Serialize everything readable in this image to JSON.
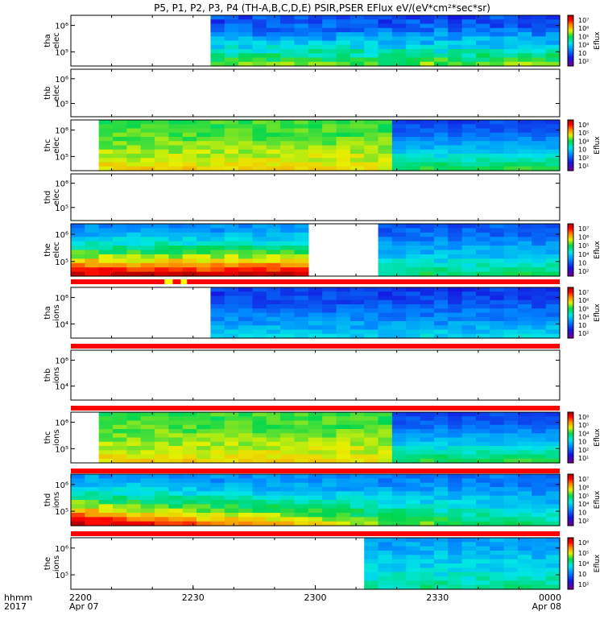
{
  "title": "P5, P1, P2, P3, P4 (TH-A,B,C,D,E) PSIR,PSER EFlux eV/(eV*cm²*sec*sr)",
  "xaxis": {
    "var_label_1": "hhmm",
    "var_label_2": "2017",
    "ticks": [
      {
        "label": "2200",
        "sublabel": "Apr 07"
      },
      {
        "label": "2230",
        "sublabel": ""
      },
      {
        "label": "2300",
        "sublabel": ""
      },
      {
        "label": "2330",
        "sublabel": ""
      },
      {
        "label": "0000",
        "sublabel": "Apr 08"
      }
    ]
  },
  "colors": {
    "quality_flag_red": "#ff0000",
    "quality_flag_yellow": "#ffff00",
    "colormap": "rainbow (purple-blue-cyan-green-yellow-red)"
  },
  "chart_data": {
    "type": "heatmap",
    "x": [
      "2200",
      "2230",
      "2300",
      "2330",
      "0000"
    ],
    "x_range_minutes": [
      0,
      120
    ],
    "y_scale": "log",
    "panels": [
      {
        "label_1": "tha",
        "label_2": "elec",
        "ytick_labels": [
          "10⁵",
          "10⁶"
        ],
        "colorbar": {
          "label": "Eflux",
          "ticks": [
            "10⁷",
            "10⁶",
            "10⁵",
            "10⁴",
            "10⁳",
            "10²"
          ]
        },
        "data_start_min": 35.5,
        "data_end_min": 120,
        "gap": null,
        "top_level": 0.22,
        "bottom_level": 0.62,
        "noise": 0.07,
        "flag": null
      },
      {
        "label_1": "thb",
        "label_2": "elec",
        "ytick_labels": [
          "10⁵",
          "10⁶"
        ],
        "colorbar": null,
        "data_start_min": null,
        "data_end_min": null,
        "gap": null,
        "flag": null
      },
      {
        "label_1": "thc",
        "label_2": "elec",
        "ytick_labels": [
          "10⁵",
          "10⁶"
        ],
        "colorbar": {
          "label": "Eflux",
          "ticks": [
            "10⁶",
            "10⁵",
            "10⁴",
            "10⁳",
            "10²",
            "10¹"
          ]
        },
        "data_start_min": 6.5,
        "data_end_min": 120,
        "gap": null,
        "split_min": 79,
        "before_split": {
          "top_level": 0.6,
          "bottom_level": 0.72
        },
        "after_split": {
          "top_level": 0.22,
          "bottom_level": 0.58
        },
        "noise": 0.04,
        "flag": null
      },
      {
        "label_1": "thd",
        "label_2": "elec",
        "ytick_labels": [
          "10⁵",
          "10⁶"
        ],
        "colorbar": null,
        "data_start_min": null,
        "data_end_min": null,
        "gap": null,
        "flag": null
      },
      {
        "label_1": "the",
        "label_2": "elec",
        "ytick_labels": [
          "10⁵",
          "10⁶"
        ],
        "colorbar": {
          "label": "Eflux",
          "ticks": [
            "10⁷",
            "10⁶",
            "10⁵",
            "10⁴",
            "10⁳",
            "10²"
          ]
        },
        "data_start_min": 0,
        "data_end_min": 120,
        "gap": [
          58,
          76
        ],
        "split_min": 58,
        "before_split": {
          "top_level": 0.32,
          "bottom_level": 0.96
        },
        "after_split": {
          "top_level": 0.25,
          "bottom_level": 0.55
        },
        "noise": 0.05,
        "flag": {
          "segments": [
            {
              "from": 0,
              "to": 23,
              "color": "red"
            },
            {
              "from": 23,
              "to": 25,
              "color": "yellow"
            },
            {
              "from": 25,
              "to": 27,
              "color": "red"
            },
            {
              "from": 27,
              "to": 28.5,
              "color": "yellow"
            },
            {
              "from": 28.5,
              "to": 120,
              "color": "red"
            }
          ]
        }
      },
      {
        "label_1": "tha",
        "label_2": "ions",
        "ytick_labels": [
          "10⁴",
          "10⁶"
        ],
        "colorbar": {
          "label": "Eflux",
          "ticks": [
            "10⁷",
            "10⁶",
            "10⁵",
            "10⁴",
            "10⁳",
            "10²"
          ]
        },
        "data_start_min": 35.5,
        "data_end_min": 120,
        "gap": null,
        "top_level": 0.2,
        "bottom_level": 0.42,
        "noise": 0.05,
        "flag": {
          "segments": [
            {
              "from": 0,
              "to": 120,
              "color": "red"
            }
          ]
        }
      },
      {
        "label_1": "thb",
        "label_2": "ions",
        "ytick_labels": [
          "10⁴",
          "10⁶"
        ],
        "colorbar": null,
        "data_start_min": null,
        "data_end_min": null,
        "gap": null,
        "flag": {
          "segments": [
            {
              "from": 0,
              "to": 120,
              "color": "red"
            }
          ]
        }
      },
      {
        "label_1": "thc",
        "label_2": "ions",
        "ytick_labels": [
          "10⁵",
          "10⁶"
        ],
        "colorbar": {
          "label": "Eflux",
          "ticks": [
            "10⁶",
            "10⁵",
            "10⁴",
            "10⁳",
            "10²",
            "10¹"
          ]
        },
        "data_start_min": 6.5,
        "data_end_min": 120,
        "gap": null,
        "split_min": 79,
        "before_split": {
          "top_level": 0.6,
          "bottom_level": 0.72
        },
        "after_split": {
          "top_level": 0.22,
          "bottom_level": 0.58
        },
        "noise": 0.04,
        "flag": {
          "segments": [
            {
              "from": 0,
              "to": 120,
              "color": "red"
            }
          ]
        }
      },
      {
        "label_1": "thd",
        "label_2": "ions",
        "ytick_labels": [
          "10⁵",
          "10⁶"
        ],
        "colorbar": {
          "label": "Eflux",
          "ticks": [
            "10⁷",
            "10⁶",
            "10⁵",
            "10⁴",
            "10⁳",
            "10²"
          ]
        },
        "data_start_min": 0,
        "data_end_min": 120,
        "gap": null,
        "gradient_across_time": {
          "start": {
            "top_level": 0.35,
            "bottom_level": 1.0
          },
          "end": {
            "top_level": 0.28,
            "bottom_level": 0.5
          }
        },
        "noise": 0.05,
        "flag": {
          "segments": [
            {
              "from": 0,
              "to": 120,
              "color": "red"
            }
          ]
        }
      },
      {
        "label_1": "the",
        "label_2": "ions",
        "ytick_labels": [
          "10⁵",
          "10⁶"
        ],
        "colorbar": {
          "label": "Eflux",
          "ticks": [
            "10⁶",
            "10⁵",
            "10⁴",
            "10⁳",
            "10²"
          ]
        },
        "data_start_min": 70.5,
        "data_end_min": 120,
        "gap": null,
        "top_level": 0.35,
        "bottom_level": 0.52,
        "noise": 0.05,
        "flag": null
      }
    ]
  }
}
